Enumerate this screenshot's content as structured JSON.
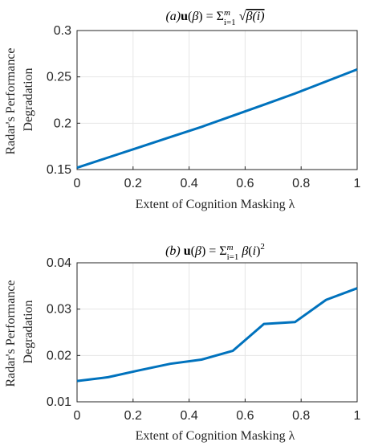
{
  "figure": {
    "shared_ylabel_line1": "Radar's Performance",
    "shared_ylabel_line2": "Degradation",
    "shared_xlabel": "Extent of Cognition Masking",
    "xlabel_symbol": "λ"
  },
  "chart_data": [
    {
      "type": "line",
      "title": "(a)u(β) = Σ_{i=1}^{m} √β(i)",
      "xlabel": "Extent of Cognition Masking λ",
      "ylabel": "Radar's Performance Degradation",
      "xlim": [
        0,
        1
      ],
      "ylim": [
        0.15,
        0.3
      ],
      "xticks": [
        "0",
        "0.2",
        "0.4",
        "0.6",
        "0.8",
        "1"
      ],
      "yticks": [
        "0.15",
        "0.2",
        "0.25",
        "0.3"
      ],
      "grid": true,
      "color": "#0072BD",
      "x": [
        0,
        0.111,
        0.222,
        0.333,
        0.444,
        0.556,
        0.667,
        0.778,
        0.889,
        1
      ],
      "values": [
        0.152,
        0.163,
        0.174,
        0.185,
        0.196,
        0.208,
        0.22,
        0.232,
        0.245,
        0.258
      ]
    },
    {
      "type": "line",
      "title": "(b) u(β) = Σ_{i=1}^{m} β(i)^2",
      "xlabel": "Extent of Cognition Masking λ",
      "ylabel": "Radar's Performance Degradation",
      "xlim": [
        0,
        1
      ],
      "ylim": [
        0.01,
        0.04
      ],
      "xticks": [
        "0",
        "0.2",
        "0.4",
        "0.6",
        "0.8",
        "1"
      ],
      "yticks": [
        "0.01",
        "0.02",
        "0.03",
        "0.04"
      ],
      "grid": true,
      "color": "#0072BD",
      "x": [
        0,
        0.111,
        0.222,
        0.333,
        0.444,
        0.556,
        0.667,
        0.778,
        0.889,
        1
      ],
      "values": [
        0.0145,
        0.0153,
        0.0168,
        0.0182,
        0.0191,
        0.021,
        0.0268,
        0.0272,
        0.032,
        0.0345
      ]
    }
  ]
}
